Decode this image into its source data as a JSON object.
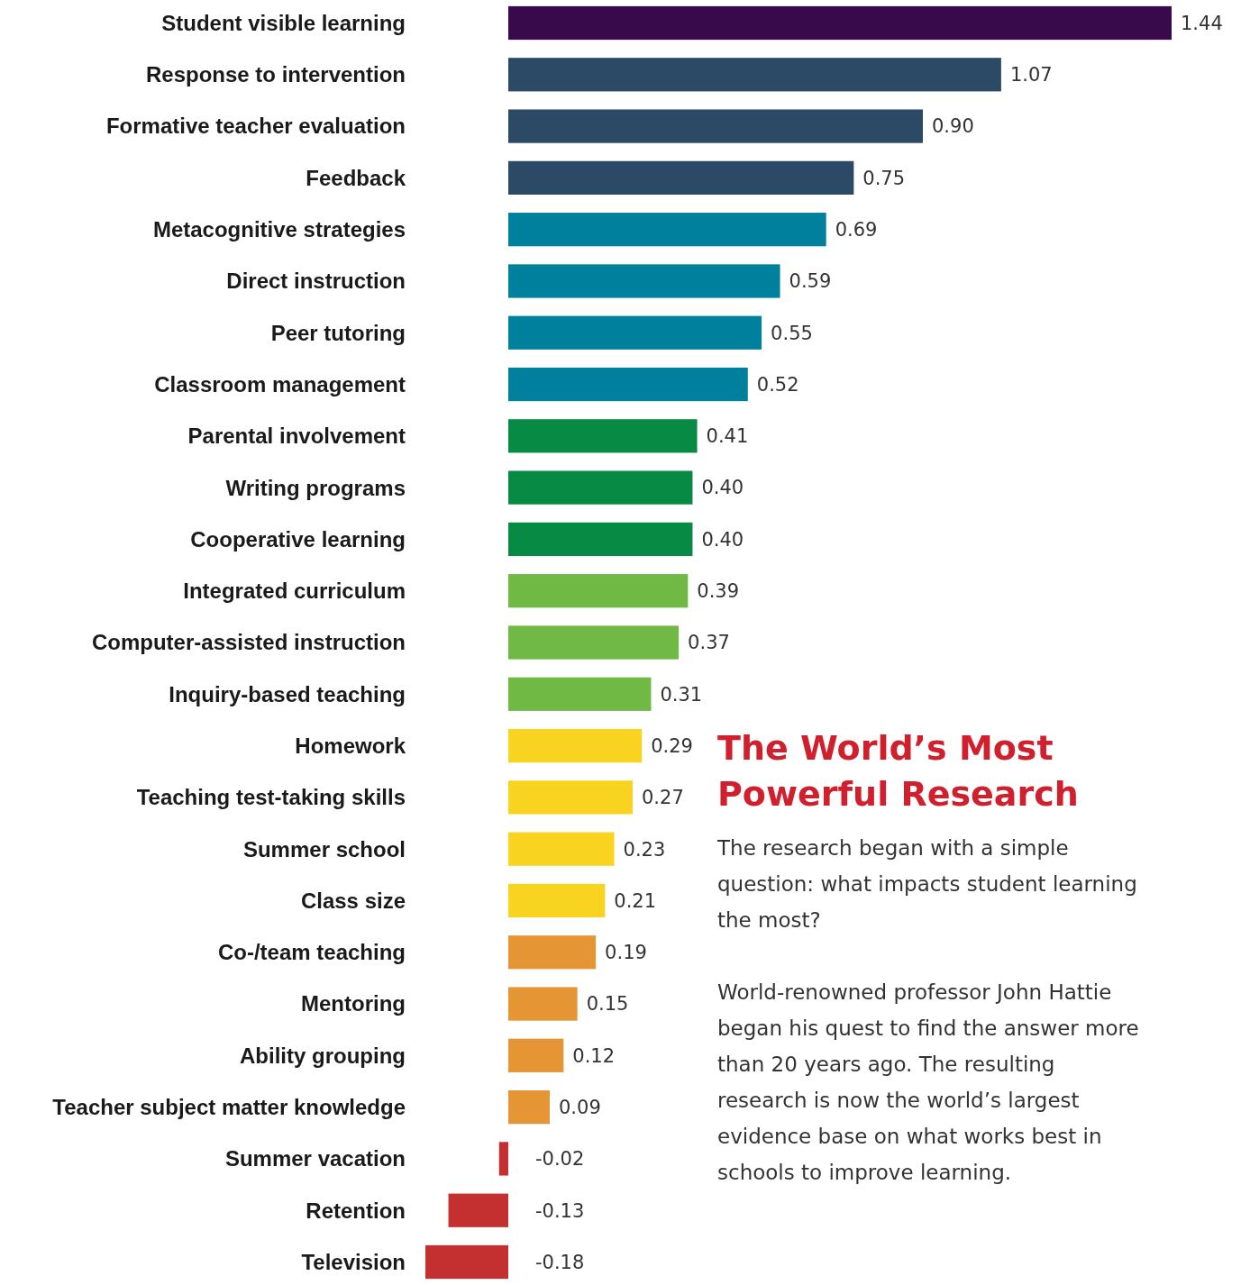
{
  "chart_data": {
    "type": "bar",
    "orientation": "horizontal",
    "title": "The World’s Most Powerful Research",
    "categories": [
      "Student visible learning",
      "Response to intervention",
      "Formative teacher evaluation",
      "Feedback",
      "Metacognitive strategies",
      "Direct instruction",
      "Peer tutoring",
      "Classroom management",
      "Parental involvement",
      "Writing programs",
      "Cooperative learning",
      "Integrated curriculum",
      "Computer-assisted instruction",
      "Inquiry-based teaching",
      "Homework",
      "Teaching test-taking skills",
      "Summer school",
      "Class size",
      "Co-/team teaching",
      "Mentoring",
      "Ability grouping",
      "Teacher subject matter knowledge",
      "Summer vacation",
      "Retention",
      "Television"
    ],
    "values": [
      1.44,
      1.07,
      0.9,
      0.75,
      0.69,
      0.59,
      0.55,
      0.52,
      0.41,
      0.4,
      0.4,
      0.39,
      0.37,
      0.31,
      0.29,
      0.27,
      0.23,
      0.21,
      0.19,
      0.15,
      0.12,
      0.09,
      -0.02,
      -0.13,
      -0.18
    ],
    "colors": [
      "#380a4c",
      "#2c4a66",
      "#2c4a66",
      "#2c4a66",
      "#00809c",
      "#00809c",
      "#00809c",
      "#00809c",
      "#078a44",
      "#078a44",
      "#078a44",
      "#70b945",
      "#70b945",
      "#70b945",
      "#f8d320",
      "#f8d320",
      "#f8d320",
      "#f8d320",
      "#e69535",
      "#e69535",
      "#e69535",
      "#e69535",
      "#c4302f",
      "#c4302f",
      "#c4302f"
    ],
    "value_labels": [
      "1.44",
      "1.07",
      "0.90",
      "0.75",
      "0.69",
      "0.59",
      "0.55",
      "0.52",
      "0.41",
      "0.40",
      "0.40",
      "0.39",
      "0.37",
      "0.31",
      "0.29",
      "0.27",
      "0.23",
      "0.21",
      "0.19",
      "0.15",
      "0.12",
      "0.09",
      "-0.02",
      "-0.13",
      "-0.18"
    ],
    "annotations": [
      "The research began with a simple question: what impacts student learning the most?",
      "World-renowned professor John Hattie began his quest to find the answer more than 20 years ago. The resulting research is now the world’s largest evidence base on what works best in schools to improve learning."
    ]
  }
}
